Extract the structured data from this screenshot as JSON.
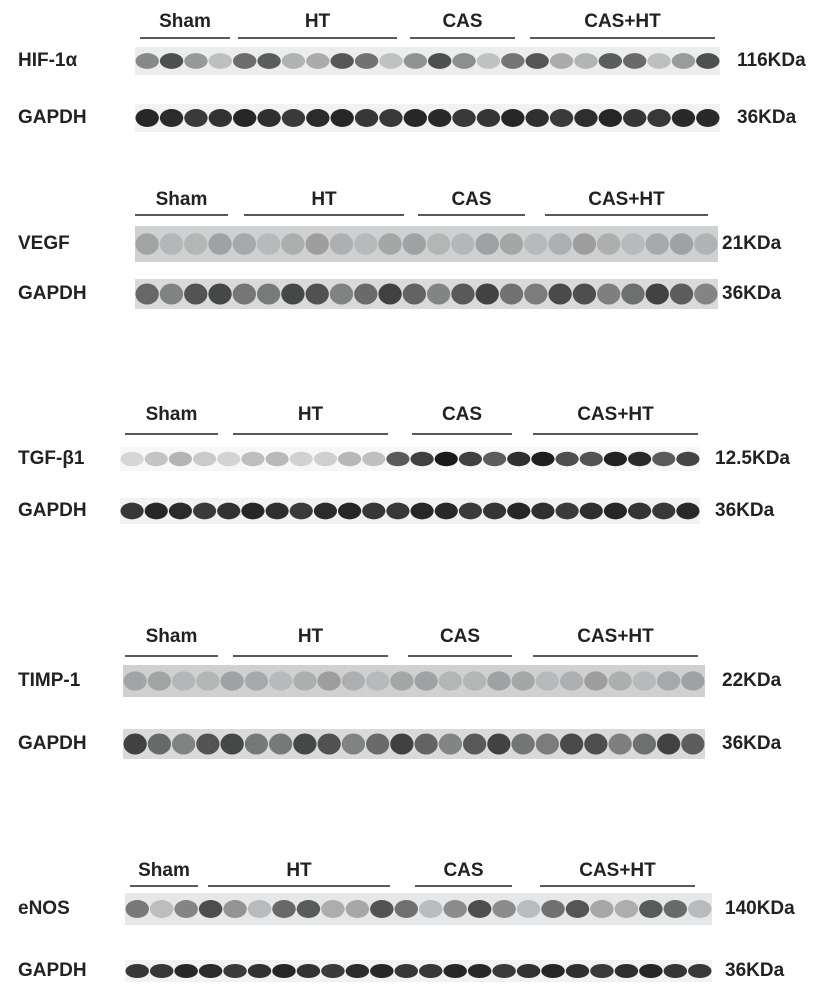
{
  "panels": [
    {
      "groups": [
        "Sham",
        "HT",
        "CAS",
        "CAS+HT"
      ],
      "blots": [
        {
          "label": "HIF-1α",
          "size": "116KDa"
        },
        {
          "label": "GAPDH",
          "size": "36KDa"
        }
      ]
    },
    {
      "groups": [
        "Sham",
        "HT",
        "CAS",
        "CAS+HT"
      ],
      "blots": [
        {
          "label": "VEGF",
          "size": "21KDa"
        },
        {
          "label": "GAPDH",
          "size": "36KDa"
        }
      ]
    },
    {
      "groups": [
        "Sham",
        "HT",
        "CAS",
        "CAS+HT"
      ],
      "blots": [
        {
          "label": "TGF-β1",
          "size": "12.5KDa"
        },
        {
          "label": "GAPDH",
          "size": "36KDa"
        }
      ]
    },
    {
      "groups": [
        "Sham",
        "HT",
        "CAS",
        "CAS+HT"
      ],
      "blots": [
        {
          "label": "TIMP-1",
          "size": "22KDa"
        },
        {
          "label": "GAPDH",
          "size": "36KDa"
        }
      ]
    },
    {
      "groups": [
        "Sham",
        "HT",
        "CAS",
        "CAS+HT"
      ],
      "blots": [
        {
          "label": "eNOS",
          "size": "140KDa"
        },
        {
          "label": "GAPDH",
          "size": "36KDa"
        }
      ]
    }
  ]
}
